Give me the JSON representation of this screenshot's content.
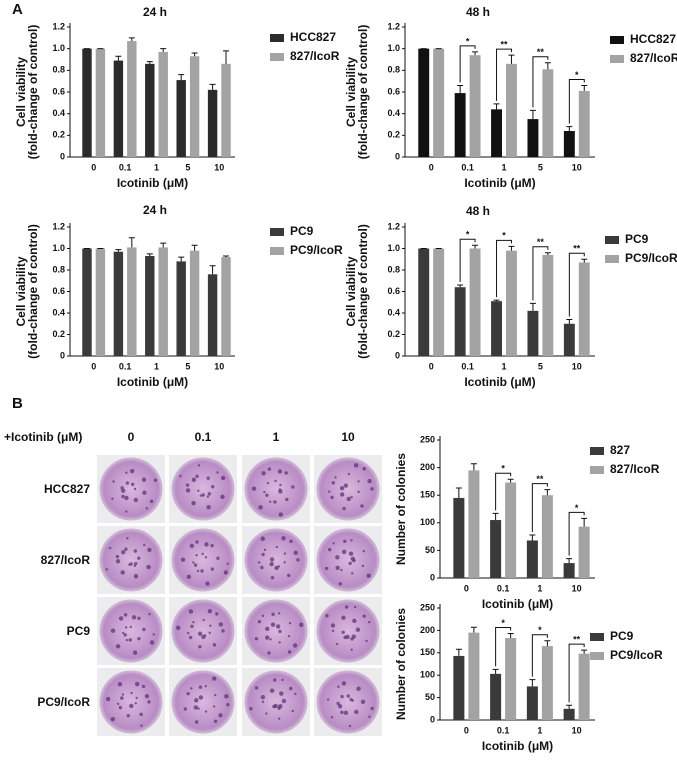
{
  "panels": {
    "a": "A",
    "b": "B"
  },
  "plates": {
    "treatment_label": "+Icotinib (μM)",
    "columns": [
      "0",
      "0.1",
      "1",
      "10"
    ],
    "rows": [
      "HCC827",
      "827/IcoR",
      "PC9",
      "PC9/IcoR"
    ]
  },
  "chart_data": [
    {
      "type": "bar",
      "title": "24 h",
      "ylabel": [
        "Cell viability",
        "(fold-change of control)"
      ],
      "xlabel": "Icotinib (μM)",
      "categories": [
        "0",
        "0.1",
        "1",
        "5",
        "10"
      ],
      "series": [
        {
          "name": "HCC827",
          "color": "#2b2b2b",
          "values": [
            1.0,
            0.89,
            0.86,
            0.71,
            0.62
          ],
          "errors": [
            0,
            0.04,
            0.02,
            0.05,
            0.05
          ]
        },
        {
          "name": "827/IcoR",
          "color": "#a3a3a3",
          "values": [
            1.0,
            1.07,
            0.97,
            0.93,
            0.86
          ],
          "errors": [
            0,
            0.03,
            0.03,
            0.03,
            0.12
          ]
        }
      ],
      "ylim": [
        0,
        1.2
      ],
      "yticks": [
        0,
        0.2,
        0.4,
        0.6,
        0.8,
        {
          "value": 1,
          "label": "1.0"
        },
        1.2
      ]
    },
    {
      "type": "bar",
      "title": "48 h",
      "ylabel": [
        "Cell viability",
        "(fold-change of control)"
      ],
      "xlabel": "Icotinib (μM)",
      "categories": [
        "0",
        "0.1",
        "1",
        "5",
        "10"
      ],
      "series": [
        {
          "name": "HCC827",
          "color": "#111111",
          "values": [
            1.0,
            0.59,
            0.44,
            0.35,
            0.24
          ],
          "errors": [
            0,
            0.07,
            0.05,
            0.08,
            0.04
          ]
        },
        {
          "name": "827/IcoR",
          "color": "#a3a3a3",
          "values": [
            1.0,
            0.94,
            0.86,
            0.81,
            0.61
          ],
          "errors": [
            0,
            0.03,
            0.08,
            0.06,
            0.05
          ]
        }
      ],
      "significance": [
        null,
        "*",
        "**",
        "**",
        "*"
      ],
      "ylim": [
        0,
        1.2
      ],
      "yticks": [
        0,
        0.2,
        0.4,
        0.6,
        0.8,
        {
          "value": 1,
          "label": "1.0"
        },
        1.2
      ]
    },
    {
      "type": "bar",
      "title": "24 h",
      "ylabel": [
        "Cell viability",
        "(fold-change of control)"
      ],
      "xlabel": "Icotinib (μM)",
      "categories": [
        "0",
        "0.1",
        "1",
        "5",
        "10"
      ],
      "series": [
        {
          "name": "PC9",
          "color": "#3a3a3a",
          "values": [
            1.0,
            0.97,
            0.93,
            0.88,
            0.76
          ],
          "errors": [
            0,
            0.02,
            0.02,
            0.04,
            0.08
          ]
        },
        {
          "name": "PC9/IcoR",
          "color": "#a3a3a3",
          "values": [
            1.0,
            1.01,
            1.01,
            0.98,
            0.92
          ],
          "errors": [
            0,
            0.09,
            0.04,
            0.05,
            0.01
          ]
        }
      ],
      "ylim": [
        0,
        1.2
      ],
      "yticks": [
        0,
        0.2,
        0.4,
        0.6,
        0.8,
        {
          "value": 1,
          "label": "1.0"
        },
        1.2
      ]
    },
    {
      "type": "bar",
      "title": "48 h",
      "ylabel": [
        "Cell viability",
        "(fold-change of control)"
      ],
      "xlabel": "Icotinib (μM)",
      "categories": [
        "0",
        "0.1",
        "1",
        "5",
        "10"
      ],
      "series": [
        {
          "name": "PC9",
          "color": "#3a3a3a",
          "values": [
            1.0,
            0.64,
            0.51,
            0.42,
            0.3
          ],
          "errors": [
            0,
            0.02,
            0.01,
            0.07,
            0.04
          ]
        },
        {
          "name": "PC9/IcoR",
          "color": "#a3a3a3",
          "values": [
            1.0,
            1.0,
            0.98,
            0.94,
            0.87
          ],
          "errors": [
            0,
            0.03,
            0.04,
            0.02,
            0.03
          ]
        }
      ],
      "significance": [
        null,
        "*",
        "*",
        "**",
        "**"
      ],
      "ylim": [
        0,
        1.2
      ],
      "yticks": [
        0,
        0.2,
        0.4,
        0.6,
        0.8,
        {
          "value": 1,
          "label": "1.0"
        },
        1.2
      ]
    },
    {
      "type": "bar",
      "ylabel": [
        "Number of colonies"
      ],
      "xlabel": "Icotinib (μM)",
      "categories": [
        "0",
        "0.1",
        "1",
        "10"
      ],
      "series": [
        {
          "name": "827",
          "color": "#3a3a3a",
          "values": [
            145,
            105,
            68,
            27
          ],
          "errors": [
            18,
            12,
            10,
            8
          ]
        },
        {
          "name": "827/IcoR",
          "color": "#a3a3a3",
          "values": [
            195,
            173,
            150,
            93
          ],
          "errors": [
            12,
            6,
            10,
            15
          ]
        }
      ],
      "significance": [
        null,
        "*",
        "**",
        "*"
      ],
      "ylim": [
        0,
        250
      ],
      "yticks": [
        0,
        50,
        100,
        150,
        200,
        250
      ]
    },
    {
      "type": "bar",
      "ylabel": [
        "Number of colonies"
      ],
      "xlabel": "Icotinib (μM)",
      "categories": [
        "0",
        "0.1",
        "1",
        "10"
      ],
      "series": [
        {
          "name": "PC9",
          "color": "#3a3a3a",
          "values": [
            143,
            103,
            75,
            25
          ],
          "errors": [
            15,
            10,
            15,
            8
          ]
        },
        {
          "name": "PC9/IcoR",
          "color": "#a3a3a3",
          "values": [
            195,
            183,
            165,
            148
          ],
          "errors": [
            12,
            10,
            12,
            8
          ]
        }
      ],
      "significance": [
        null,
        "*",
        "*",
        "**"
      ],
      "ylim": [
        0,
        250
      ],
      "yticks": [
        0,
        50,
        100,
        150,
        200,
        250
      ]
    }
  ]
}
